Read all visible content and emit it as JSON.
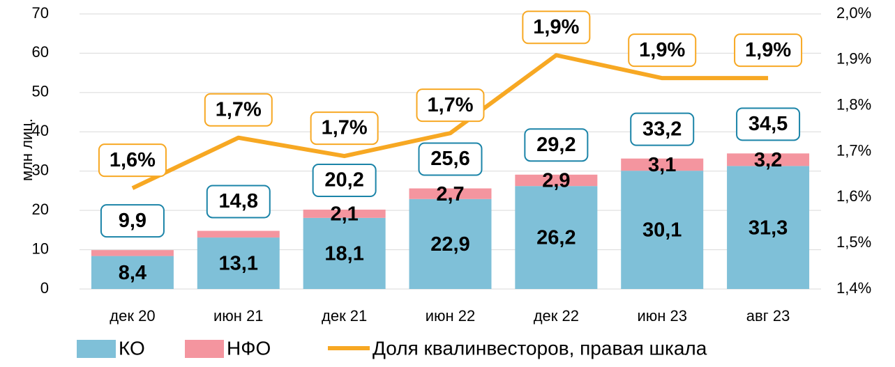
{
  "chart_data": {
    "type": "bar_line",
    "y_label": "млн лиц.",
    "categories": [
      "дек 20",
      "июн 21",
      "дек 21",
      "июн 22",
      "дек 22",
      "июн 23",
      "авг 23"
    ],
    "series": [
      {
        "name": "КО",
        "color": "#7fc0d8",
        "values": [
          8.4,
          13.1,
          18.1,
          22.9,
          26.2,
          30.1,
          31.3
        ],
        "value_labels": [
          "8,4",
          "13,1",
          "18,1",
          "22,9",
          "26,2",
          "30,1",
          "31,3"
        ]
      },
      {
        "name": "НФО",
        "color": "#f4959f",
        "values": [
          1.5,
          1.7,
          2.1,
          2.7,
          2.9,
          3.1,
          3.2
        ],
        "value_labels": [
          null,
          null,
          "2,1",
          "2,7",
          "2,9",
          "3,1",
          "3,2"
        ]
      },
      {
        "name": "Доля квалинвесторов, правая шкала",
        "color": "#f7a823",
        "axis": "y2",
        "values": [
          1.62,
          1.73,
          1.69,
          1.74,
          1.91,
          1.86,
          1.86
        ],
        "value_labels": [
          "1,6%",
          "1,7%",
          "1,7%",
          "1,7%",
          "1,9%",
          "1,9%",
          "1,9%"
        ]
      }
    ],
    "totals": [
      9.9,
      14.8,
      20.2,
      25.6,
      29.2,
      33.2,
      34.5
    ],
    "total_labels": [
      "9,9",
      "14,8",
      "20,2",
      "25,6",
      "29,2",
      "33,2",
      "34,5"
    ],
    "ylim": [
      0,
      70
    ],
    "yticks": [
      0,
      10,
      20,
      30,
      40,
      50,
      60,
      70
    ],
    "y2lim": [
      1.4,
      2.0
    ],
    "y2ticks": [
      {
        "value": 1.4,
        "label": "1,4%"
      },
      {
        "value": 1.5,
        "label": "1,5%"
      },
      {
        "value": 1.6,
        "label": "1,6%"
      },
      {
        "value": 1.7,
        "label": "1,7%"
      },
      {
        "value": 1.8,
        "label": "1,8%"
      },
      {
        "value": 1.9,
        "label": "1,9%"
      },
      {
        "value": 2.0,
        "label": "2,0%"
      }
    ],
    "grid": true
  }
}
